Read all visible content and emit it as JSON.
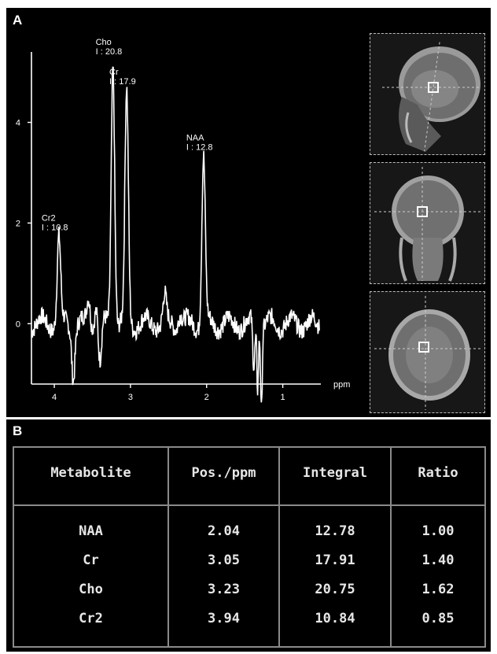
{
  "panel_a": {
    "label": "A",
    "chart_data": {
      "type": "line",
      "xlabel": "ppm",
      "ylabel": "",
      "x_ticks": [
        4,
        3,
        2,
        1
      ],
      "y_ticks": [
        0,
        2,
        4
      ],
      "xlim": [
        4.3,
        0.5
      ],
      "ylim": [
        -1.2,
        5.4
      ],
      "peaks": [
        {
          "name": "Cho",
          "ppm": 3.23,
          "height": 5.2,
          "integral_label": "I : 20.8"
        },
        {
          "name": "Cr",
          "ppm": 3.05,
          "height": 4.6,
          "integral_label": "I : 17.9"
        },
        {
          "name": "NAA",
          "ppm": 2.04,
          "height": 3.3,
          "integral_label": "I : 12.8"
        },
        {
          "name": "Cr2",
          "ppm": 3.94,
          "height": 1.7,
          "integral_label": "I : 10.8"
        }
      ],
      "peak_labels": [
        {
          "name": "Cho",
          "integral": "I : 20.8"
        },
        {
          "name": "Cr",
          "integral": "I : 17.9"
        },
        {
          "name": "NAA",
          "integral": "I : 12.8"
        },
        {
          "name": "Cr2",
          "integral": "I : 10.8"
        }
      ]
    },
    "thumbnails": [
      "sagittal",
      "coronal",
      "axial"
    ]
  },
  "panel_b": {
    "label": "B",
    "headers": [
      "Metabolite",
      "Pos./ppm",
      "Integral",
      "Ratio"
    ],
    "rows": [
      [
        "NAA",
        "2.04",
        "12.78",
        "1.00"
      ],
      [
        "Cr",
        "3.05",
        "17.91",
        "1.40"
      ],
      [
        "Cho",
        "3.23",
        "20.75",
        "1.62"
      ],
      [
        "Cr2",
        "3.94",
        "10.84",
        "0.85"
      ]
    ]
  }
}
